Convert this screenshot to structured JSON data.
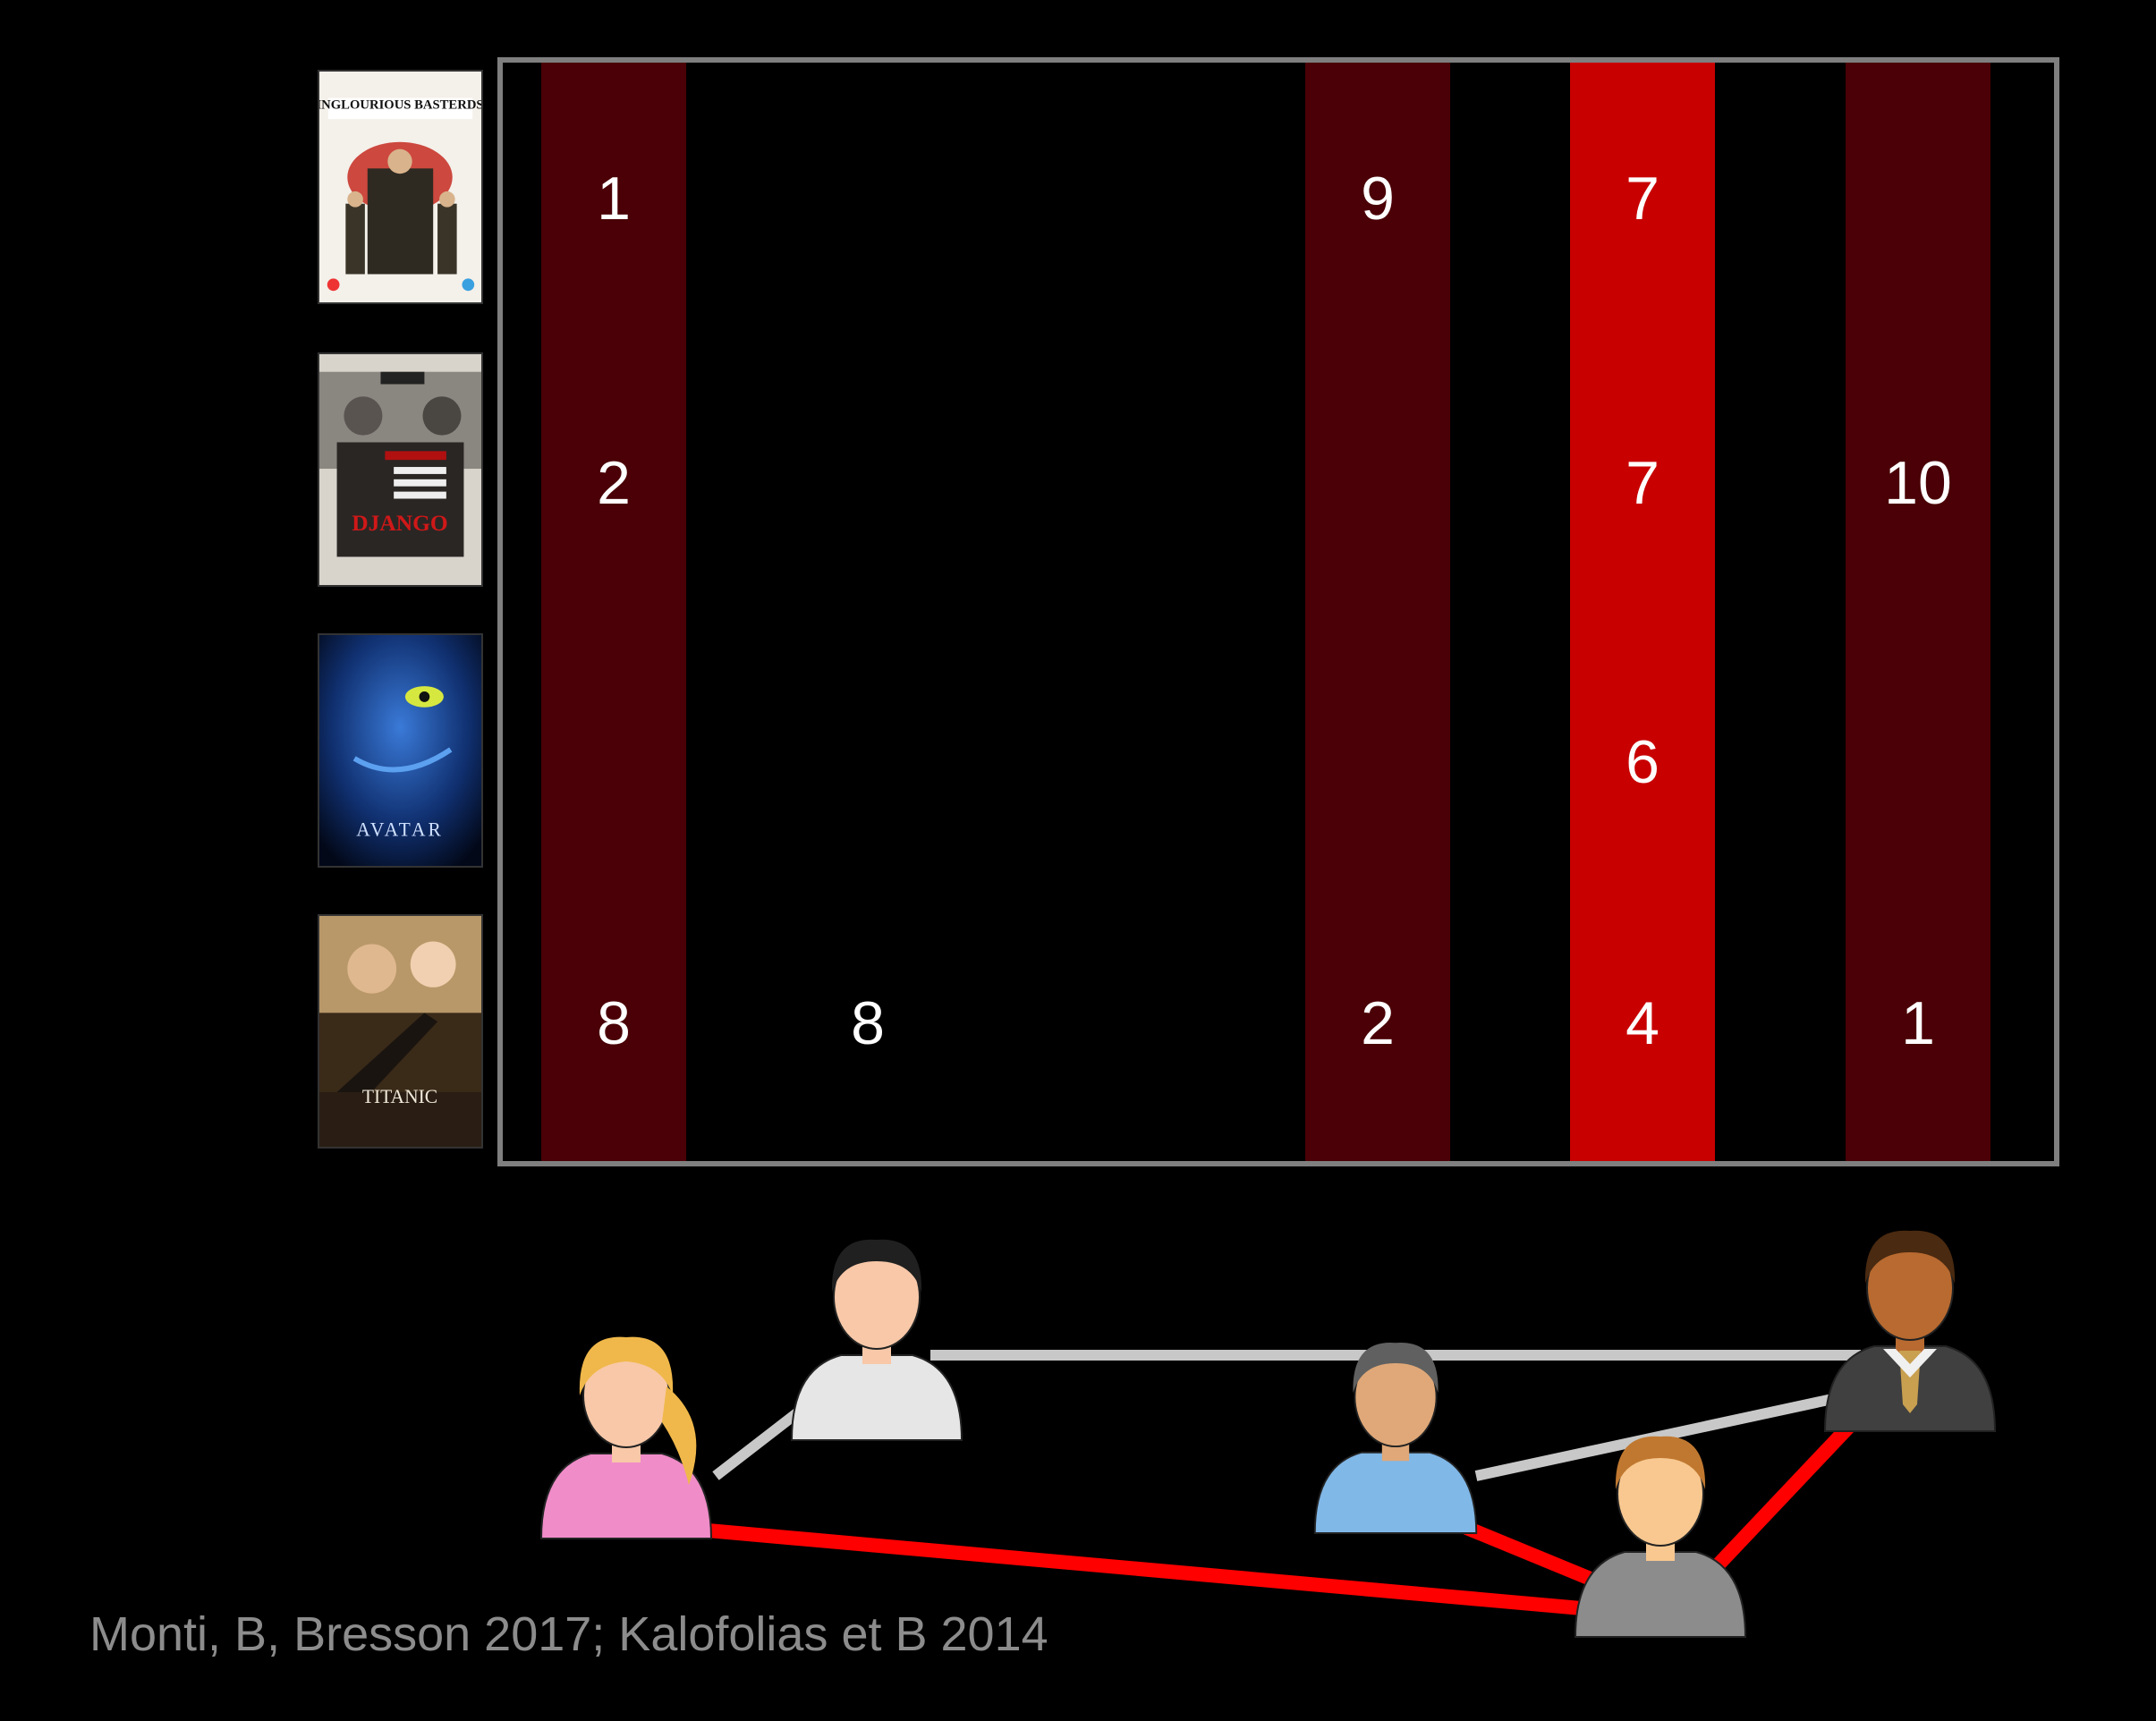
{
  "movies": [
    {
      "name": "inglourious-basterds-poster",
      "title_text": "INGLOURIOUS BASTERDS"
    },
    {
      "name": "django-poster",
      "title_text": "DJANGO"
    },
    {
      "name": "avatar-poster",
      "title_text": "AVATAR"
    },
    {
      "name": "titanic-poster",
      "title_text": "TITANIC"
    }
  ],
  "columns": [
    {
      "user": 1,
      "color": "#4a0006"
    },
    {
      "user": 4,
      "color": "#4a0006"
    },
    {
      "user": 5,
      "color": "#c80000"
    },
    {
      "user": 6,
      "color": "#4a0006"
    }
  ],
  "ratings": [
    {
      "movie": 1,
      "user": 1,
      "value": "1"
    },
    {
      "movie": 1,
      "user": 4,
      "value": "9"
    },
    {
      "movie": 1,
      "user": 5,
      "value": "7"
    },
    {
      "movie": 2,
      "user": 1,
      "value": "2"
    },
    {
      "movie": 2,
      "user": 5,
      "value": "7"
    },
    {
      "movie": 2,
      "user": 6,
      "value": "10"
    },
    {
      "movie": 3,
      "user": 5,
      "value": "6"
    },
    {
      "movie": 4,
      "user": 1,
      "value": "8"
    },
    {
      "movie": 4,
      "user": 2,
      "value": "8"
    },
    {
      "movie": 4,
      "user": 4,
      "value": "2"
    },
    {
      "movie": 4,
      "user": 5,
      "value": "4"
    },
    {
      "movie": 4,
      "user": 6,
      "value": "1"
    }
  ],
  "users": [
    {
      "id": "girl",
      "shirt": "#f08cc8",
      "hair": "#f0b84a",
      "skin": "#f8c8a8"
    },
    {
      "id": "man-white-shirt",
      "shirt": "#e6e6e6",
      "hair": "#202020",
      "skin": "#f8c8a8"
    },
    {
      "id": "man-blue-shirt",
      "shirt": "#80b8e8",
      "hair": "#606060",
      "skin": "#e0a878"
    },
    {
      "id": "man-gray-shirt",
      "shirt": "#8c8c8c",
      "hair": "#c07830",
      "skin": "#f8c890"
    },
    {
      "id": "man-suit",
      "shirt": "#404040",
      "hair": "#4a2a10",
      "skin": "#b86a30"
    }
  ],
  "edges": [
    {
      "from": "girl",
      "to": "man-white-shirt",
      "color": "#c8c8c8"
    },
    {
      "from": "man-white-shirt",
      "to": "man-suit",
      "color": "#c8c8c8"
    },
    {
      "from": "man-blue-shirt",
      "to": "man-suit",
      "color": "#c8c8c8"
    },
    {
      "from": "girl",
      "to": "man-gray-shirt",
      "color": "#ff0000"
    },
    {
      "from": "man-blue-shirt",
      "to": "man-gray-shirt",
      "color": "#ff0000"
    },
    {
      "from": "man-gray-shirt",
      "to": "man-suit",
      "color": "#ff0000"
    }
  ],
  "citation": "Monti, B, Bresson 2017; Kalofolias et B 2014"
}
